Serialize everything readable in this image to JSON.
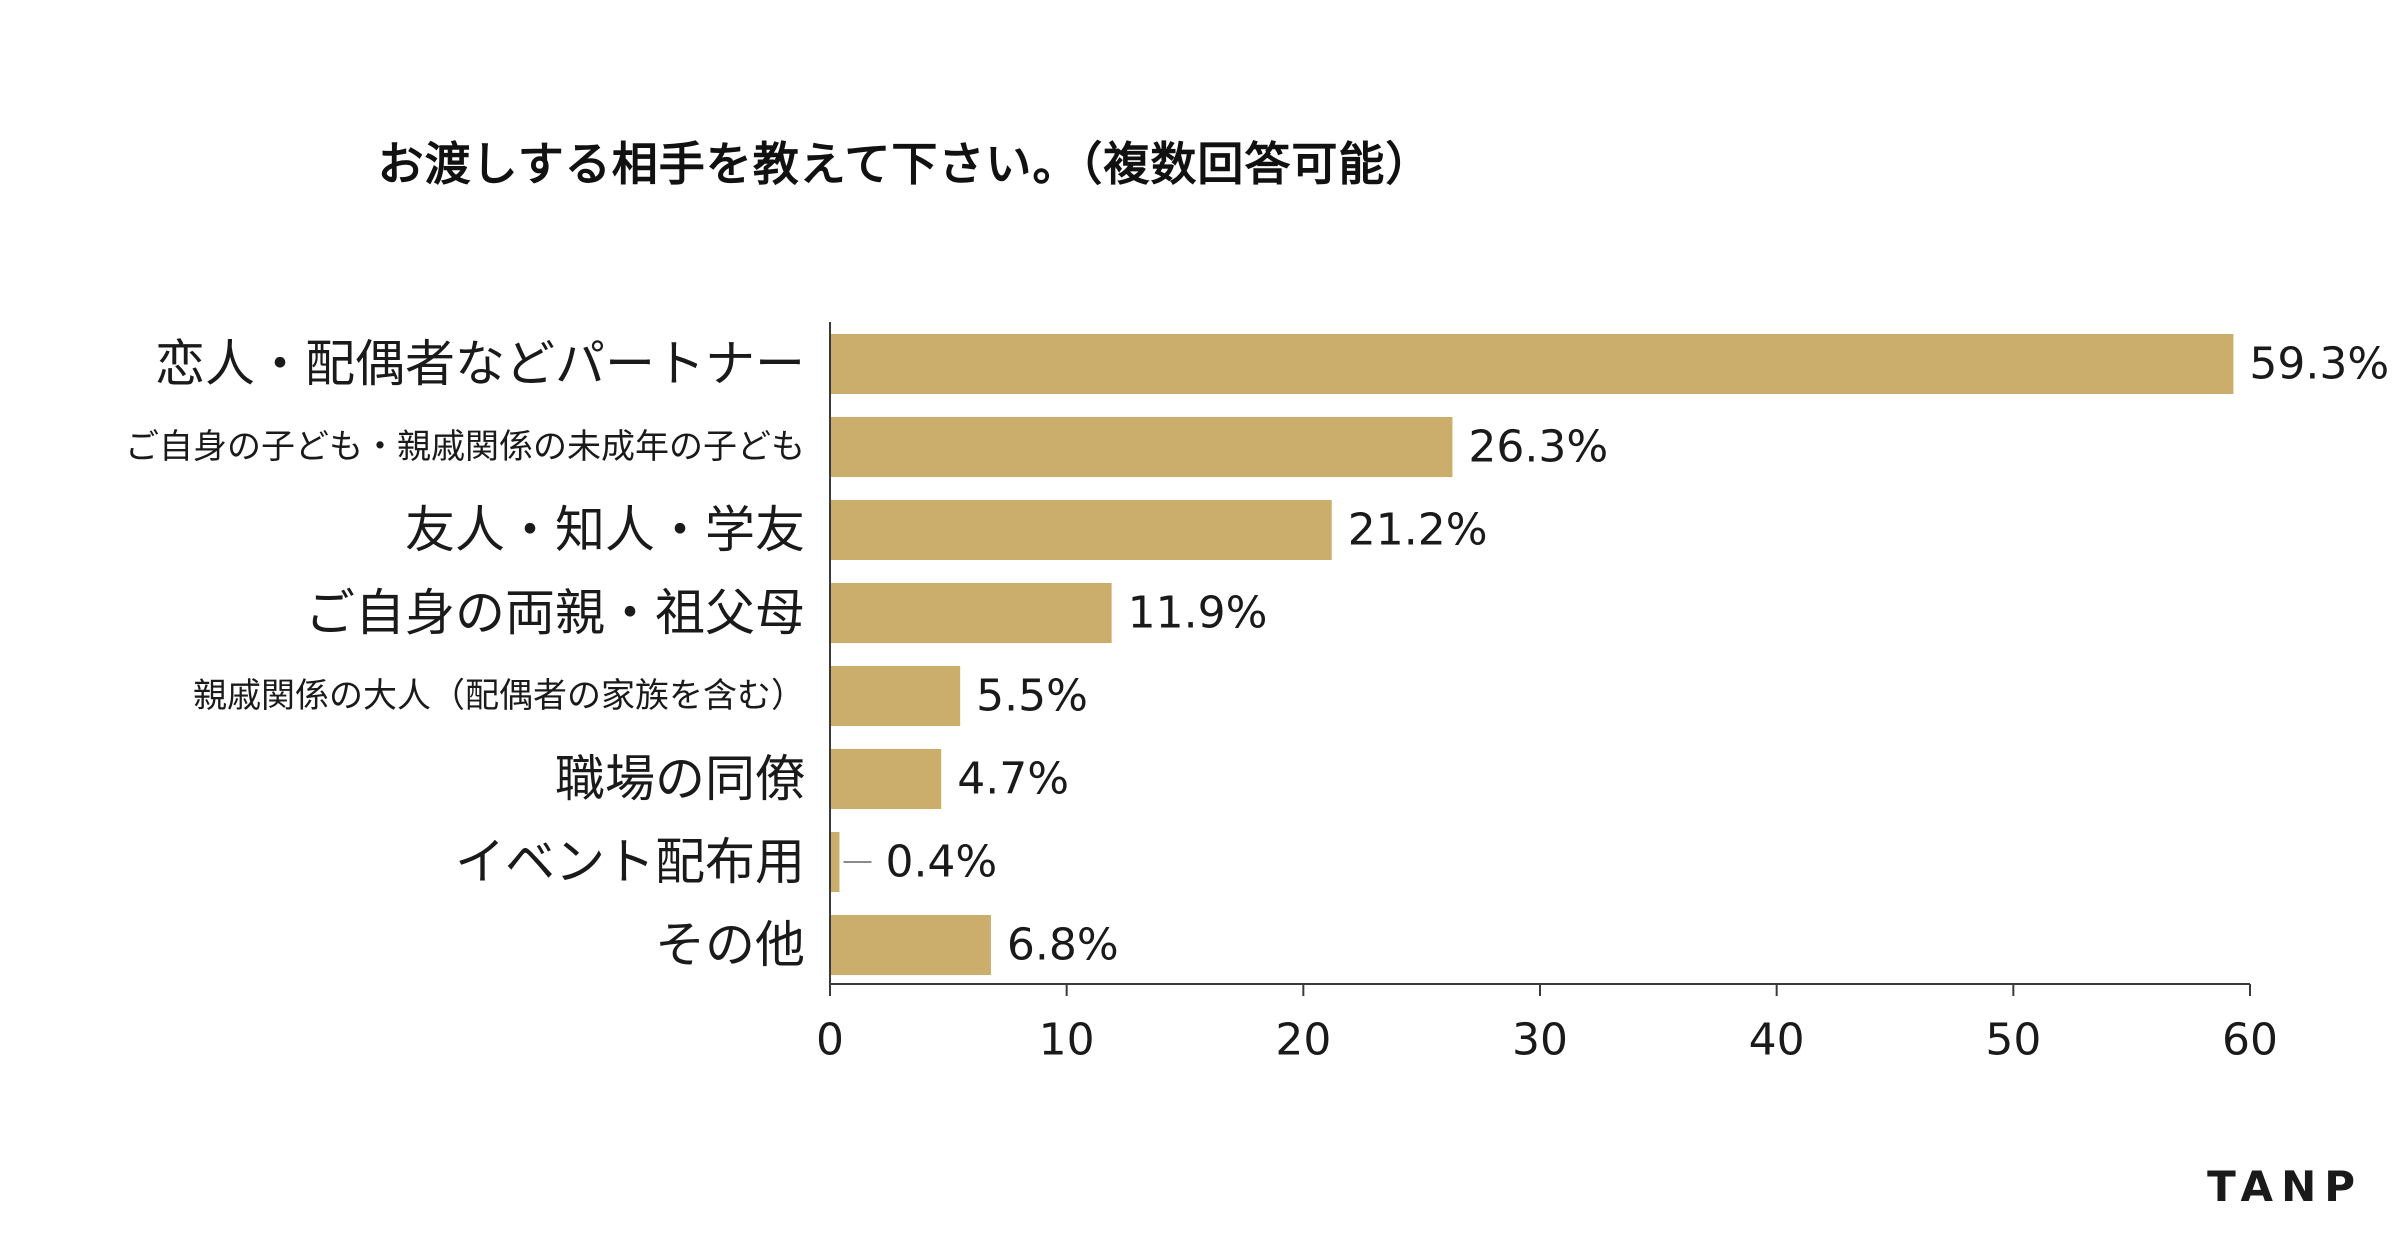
{
  "chart_data": {
    "type": "bar",
    "orientation": "horizontal",
    "title": "お渡しする相手を教えて下さい。（複数回答可能）",
    "categories": [
      "恋人・配偶者などパートナー",
      "ご自身の子ども・親戚関係の未成年の子ども",
      "友人・知人・学友",
      "ご自身の両親・祖父母",
      "親戚関係の大人（配偶者の家族を含む）",
      "職場の同僚",
      "イベント配布用",
      "その他"
    ],
    "values": [
      59.3,
      26.3,
      21.2,
      11.9,
      5.5,
      4.7,
      0.4,
      6.8
    ],
    "value_labels": [
      "59.3%",
      "26.3%",
      "21.2%",
      "11.9%",
      "5.5%",
      "4.7%",
      "0.4%",
      "6.8%"
    ],
    "xlim": [
      0,
      60
    ],
    "xticks": [
      0,
      10,
      20,
      30,
      40,
      50,
      60
    ],
    "xlabel": "",
    "ylabel": "",
    "bar_color": "#cbae6c",
    "grid": false
  },
  "brand": {
    "logo_text": "TANP"
  }
}
